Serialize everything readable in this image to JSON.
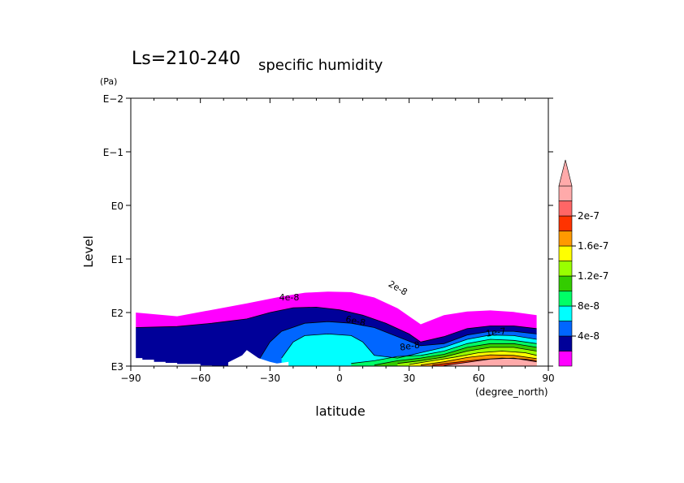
{
  "chart_data": {
    "type": "contour",
    "title_main": "Ls=210-240",
    "title_sub": "specific humidity",
    "xlabel": "latitude",
    "x_unit": "(degree_north)",
    "ylabel": "Level",
    "y_unit": "(Pa)",
    "xlim": [
      -90,
      90
    ],
    "ylim_log10": [
      -2,
      3
    ],
    "y_scale": "log",
    "y_inverted": true,
    "x_ticks": [
      "−90",
      "−60",
      "−30",
      "0",
      "30",
      "60",
      "90"
    ],
    "y_ticks": [
      "E−2",
      "E−1",
      "E0",
      "E1",
      "E2",
      "E3"
    ],
    "contour_labels": [
      "2e-8",
      "4e-8",
      "6e-8",
      "8e-8",
      "1e-7"
    ],
    "colorbar": {
      "labels": [
        "2e-7",
        "1.6e-7",
        "1.2e-7",
        "8e-8",
        "4e-8"
      ],
      "levels": [
        2e-08,
        4e-08,
        6e-08,
        8e-08,
        1e-07,
        1.2e-07,
        1.4e-07,
        1.6e-07,
        1.8e-07,
        2e-07,
        2.2e-07
      ],
      "colors": [
        "#ff00ff",
        "#000099",
        "#0066ff",
        "#00ffff",
        "#00ff66",
        "#33cc00",
        "#99ff00",
        "#ffff00",
        "#ff9900",
        "#ff3300",
        "#ff6666",
        "#ffaaaa"
      ],
      "extend": "max"
    },
    "bands": [
      {
        "level": "2e-8",
        "color": "#ff00ff",
        "lat": [
          -88,
          -70,
          -55,
          -40,
          -25,
          -15,
          -5,
          5,
          15,
          25,
          35,
          45,
          55,
          65,
          75,
          85
        ],
        "top": [
          2.0,
          2.07,
          1.95,
          1.83,
          1.7,
          1.63,
          1.61,
          1.62,
          1.72,
          1.92,
          2.22,
          2.05,
          1.98,
          1.96,
          1.99,
          2.05
        ]
      },
      {
        "level": "4e-8",
        "color": "#000099",
        "lat": [
          -88,
          -70,
          -55,
          -40,
          -30,
          -20,
          -10,
          0,
          10,
          20,
          30,
          35,
          45,
          55,
          65,
          75,
          85
        ],
        "top": [
          2.28,
          2.26,
          2.2,
          2.12,
          2.0,
          1.91,
          1.9,
          1.95,
          2.05,
          2.2,
          2.4,
          2.55,
          2.45,
          2.3,
          2.25,
          2.25,
          2.3
        ]
      },
      {
        "level": "6e-8",
        "color": "#0066ff",
        "lat": [
          -35,
          -30,
          -25,
          -15,
          -5,
          5,
          15,
          25,
          35,
          45,
          55,
          65,
          75,
          85
        ],
        "top": [
          2.9,
          2.55,
          2.35,
          2.2,
          2.17,
          2.2,
          2.28,
          2.45,
          2.62,
          2.58,
          2.42,
          2.35,
          2.35,
          2.4
        ]
      },
      {
        "level": "8e-8",
        "color": "#00ffff",
        "lat": [
          -25,
          -20,
          -15,
          -5,
          5,
          10,
          15,
          25,
          35,
          45,
          55,
          65,
          75,
          85
        ],
        "top": [
          2.85,
          2.55,
          2.43,
          2.4,
          2.43,
          2.55,
          2.8,
          2.85,
          2.75,
          2.65,
          2.5,
          2.42,
          2.43,
          2.5
        ]
      },
      {
        "level": "1e-7",
        "color": "#00ff66",
        "lat": [
          5,
          15,
          25,
          35,
          45,
          55,
          65,
          75,
          85
        ],
        "top": [
          2.95,
          2.9,
          2.82,
          2.8,
          2.72,
          2.58,
          2.5,
          2.52,
          2.58
        ]
      },
      {
        "level": "1.2e-7",
        "color": "#33cc00",
        "lat": [
          15,
          25,
          35,
          45,
          55,
          65,
          75,
          85
        ],
        "top": [
          2.98,
          2.9,
          2.85,
          2.78,
          2.65,
          2.58,
          2.58,
          2.65
        ]
      },
      {
        "level": "1.4e-7",
        "color": "#99ff00",
        "lat": [
          25,
          35,
          45,
          55,
          65,
          75,
          85
        ],
        "top": [
          2.95,
          2.9,
          2.83,
          2.72,
          2.65,
          2.65,
          2.72
        ]
      },
      {
        "level": "1.6e-7",
        "color": "#ffff00",
        "lat": [
          30,
          40,
          50,
          60,
          70,
          80,
          85
        ],
        "top": [
          2.97,
          2.9,
          2.83,
          2.75,
          2.72,
          2.75,
          2.8
        ]
      },
      {
        "level": "1.8e-7",
        "color": "#ff9900",
        "lat": [
          35,
          45,
          55,
          65,
          75,
          85
        ],
        "top": [
          2.98,
          2.92,
          2.84,
          2.79,
          2.8,
          2.86
        ]
      },
      {
        "level": "2e-7",
        "color": "#ff3300",
        "lat": [
          40,
          50,
          60,
          70,
          80,
          85
        ],
        "top": [
          2.98,
          2.93,
          2.88,
          2.85,
          2.87,
          2.9
        ]
      },
      {
        "level": "2.2e-7",
        "color": "#ffaaaa",
        "lat": [
          45,
          55,
          65,
          75,
          85
        ],
        "top": [
          2.99,
          2.93,
          2.87,
          2.85,
          2.92
        ]
      }
    ],
    "topography_lat": [
      -88,
      -85,
      -85,
      -80,
      -80,
      -75,
      -75,
      -70,
      -70,
      -60,
      -60,
      -55,
      -55,
      -48,
      -48,
      -42,
      -40,
      -35,
      -30,
      -27,
      -22
    ],
    "topography_top": [
      2.85,
      2.85,
      2.88,
      2.88,
      2.92,
      2.92,
      2.94,
      2.94,
      2.96,
      2.96,
      2.99,
      2.99,
      3.0,
      3.0,
      2.93,
      2.8,
      2.7,
      2.85,
      2.92,
      2.95,
      2.92
    ]
  }
}
